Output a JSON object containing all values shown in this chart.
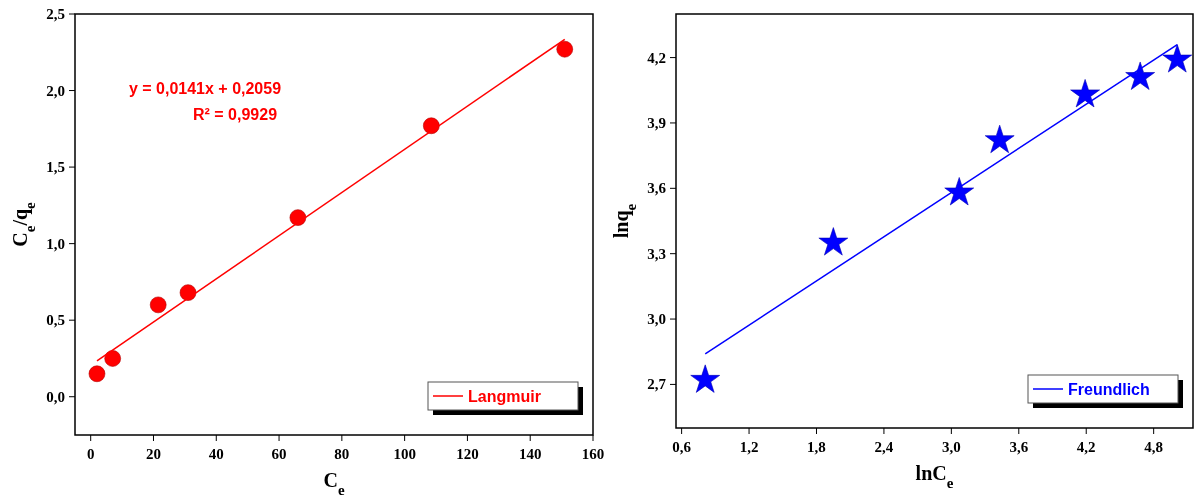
{
  "chart_data": [
    {
      "type": "scatter",
      "xlabel": "C$_{e}$",
      "ylabel": "C$_{e}$/q$_{e}$",
      "xlim": [
        -5,
        160
      ],
      "xticks": [
        0,
        20,
        40,
        60,
        80,
        100,
        120,
        140,
        160
      ],
      "ylim": [
        -0.25,
        2.5
      ],
      "yticks": [
        {
          "value": 0,
          "label": "0,0"
        },
        {
          "value": 0.5,
          "label": "0,5"
        },
        {
          "value": 1,
          "label": "1,0"
        },
        {
          "value": 1.5,
          "label": "1,5"
        },
        {
          "value": 2,
          "label": "2,0"
        },
        {
          "value": 2.5,
          "label": "2,5"
        }
      ],
      "legend": "bottom right",
      "grid": false,
      "annotations": [
        "y = 0,0141x + 0,2059",
        "R² = 0,9929"
      ],
      "series": [
        {
          "marker": "circle",
          "color": "#ff0000",
          "x": [
            2,
            7,
            21.5,
            31,
            66,
            108.5,
            151
          ],
          "values": [
            0.15,
            0.25,
            0.6,
            0.68,
            1.17,
            1.77,
            2.27
          ]
        },
        {
          "type": "line",
          "name": "Langmuir",
          "color": "#ff0000",
          "line_style": "solid",
          "x": [
            2,
            151
          ],
          "values": [
            0.234,
            2.335
          ]
        }
      ]
    },
    {
      "type": "scatter",
      "xlabel": "lnC$_{e}$",
      "ylabel": "lnq$_{e}$",
      "xlim": [
        0.55,
        5.15
      ],
      "xticks": [
        {
          "value": 0.6,
          "label": "0,6"
        },
        {
          "value": 1.2,
          "label": "1,2"
        },
        {
          "value": 1.8,
          "label": "1,8"
        },
        {
          "value": 2.4,
          "label": "2,4"
        },
        {
          "value": 3,
          "label": "3,0"
        },
        {
          "value": 3.6,
          "label": "3,6"
        },
        {
          "value": 4.2,
          "label": "4,2"
        },
        {
          "value": 4.8,
          "label": "4,8"
        }
      ],
      "ylim": [
        2.5,
        4.4
      ],
      "yticks": [
        {
          "value": 2.7,
          "label": "2,7"
        },
        {
          "value": 3,
          "label": "3,0"
        },
        {
          "value": 3.3,
          "label": "3,3"
        },
        {
          "value": 3.6,
          "label": "3,6"
        },
        {
          "value": 3.9,
          "label": "3,9"
        },
        {
          "value": 4.2,
          "label": "4,2"
        }
      ],
      "legend": "bottom right",
      "grid": false,
      "series": [
        {
          "marker": "star",
          "color": "#0000ff",
          "x": [
            0.81,
            1.95,
            3.07,
            3.43,
            4.19,
            4.68,
            5.01
          ],
          "values": [
            2.72,
            3.35,
            3.58,
            3.82,
            4.03,
            4.11,
            4.19
          ]
        },
        {
          "type": "line",
          "name": "Freundlich",
          "color": "#0000ff",
          "line_style": "solid",
          "x": [
            0.81,
            5.01
          ],
          "values": [
            2.84,
            4.26
          ]
        }
      ]
    }
  ]
}
